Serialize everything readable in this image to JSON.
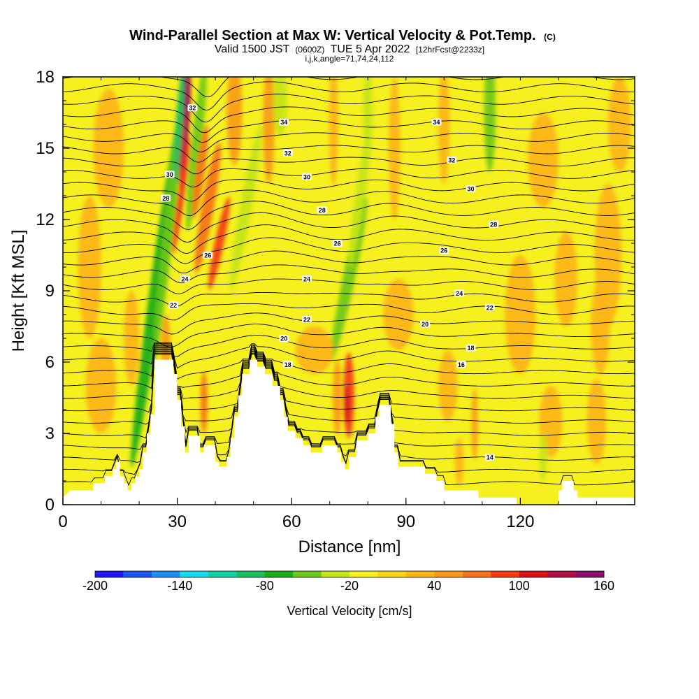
{
  "header": {
    "title": "Wind-Parallel Section at Max W: Vertical Velocity & Pot.Temp.",
    "title_mark": "(C)",
    "valid_prefix": "Valid 1500 JST",
    "valid_z": "(0600Z)",
    "valid_date": "TUE 5 Apr 2022",
    "fcst": "[12hrFcst@2233z]",
    "indices": "i,j,k,angle=71,74,24,112"
  },
  "chart_data": {
    "type": "heatmap",
    "xlabel": "Distance [nm]",
    "ylabel": "Height [Kft MSL]",
    "xlim": [
      0,
      150
    ],
    "ylim": [
      0,
      18
    ],
    "x_ticks": [
      "0",
      "30",
      "60",
      "90",
      "120"
    ],
    "y_ticks": [
      "0",
      "3",
      "6",
      "9",
      "12",
      "15",
      "18"
    ],
    "colorbar": {
      "label": "Vertical Velocity [cm/s]",
      "tick_labels": [
        "-200",
        "-140",
        "-80",
        "-20",
        "40",
        "100",
        "160"
      ],
      "levels": [
        -200,
        -180,
        -160,
        -140,
        -120,
        -100,
        -80,
        -60,
        -40,
        -20,
        0,
        20,
        40,
        60,
        80,
        100,
        120,
        140,
        160
      ],
      "colors": [
        "#1c18f5",
        "#1a55ee",
        "#1a8ff0",
        "#16d8ee",
        "#12d0a4",
        "#18c060",
        "#1aad1a",
        "#6ec81a",
        "#c4e41a",
        "#f6f01e",
        "#fcd216",
        "#fcb416",
        "#f89a16",
        "#f6721a",
        "#f23a14",
        "#d8101c",
        "#b0104a",
        "#86106c"
      ]
    },
    "terrain": [
      [
        0,
        0.3
      ],
      [
        2,
        0.6
      ],
      [
        8,
        0.6
      ],
      [
        8,
        0.9
      ],
      [
        11,
        0.9
      ],
      [
        11,
        1.2
      ],
      [
        13,
        1.2
      ],
      [
        13,
        1.5
      ],
      [
        14,
        1.5
      ],
      [
        14,
        1.8
      ],
      [
        15,
        1.8
      ],
      [
        15,
        1.2
      ],
      [
        16,
        1.2
      ],
      [
        16,
        0.9
      ],
      [
        17,
        0.9
      ],
      [
        17,
        0.6
      ],
      [
        18,
        0.6
      ],
      [
        18,
        0.9
      ],
      [
        19,
        0.9
      ],
      [
        19,
        1.2
      ],
      [
        20,
        1.2
      ],
      [
        20,
        1.5
      ],
      [
        21,
        1.5
      ],
      [
        21,
        2.2
      ],
      [
        22,
        2.2
      ],
      [
        22,
        3.0
      ],
      [
        23,
        3.0
      ],
      [
        23,
        3.8
      ],
      [
        24,
        3.8
      ],
      [
        24,
        6.1
      ],
      [
        29,
        6.1
      ],
      [
        29,
        5.5
      ],
      [
        30,
        5.5
      ],
      [
        30,
        4.4
      ],
      [
        31,
        4.4
      ],
      [
        31,
        3.3
      ],
      [
        32,
        3.3
      ],
      [
        32,
        2.2
      ],
      [
        33,
        2.2
      ],
      [
        33,
        2.9
      ],
      [
        36,
        2.9
      ],
      [
        36,
        2.2
      ],
      [
        37,
        2.2
      ],
      [
        37,
        2.5
      ],
      [
        40,
        2.5
      ],
      [
        40,
        1.8
      ],
      [
        41,
        1.8
      ],
      [
        41,
        1.6
      ],
      [
        43,
        1.6
      ],
      [
        43,
        2.0
      ],
      [
        44,
        2.0
      ],
      [
        44,
        2.8
      ],
      [
        45,
        2.8
      ],
      [
        45,
        3.7
      ],
      [
        46,
        3.7
      ],
      [
        46,
        4.6
      ],
      [
        47,
        4.6
      ],
      [
        47,
        5.5
      ],
      [
        49,
        5.5
      ],
      [
        49,
        6.1
      ],
      [
        51,
        6.1
      ],
      [
        51,
        5.8
      ],
      [
        53,
        5.8
      ],
      [
        53,
        5.5
      ],
      [
        55,
        5.5
      ],
      [
        55,
        5.0
      ],
      [
        57,
        5.0
      ],
      [
        57,
        4.4
      ],
      [
        58,
        4.4
      ],
      [
        58,
        3.7
      ],
      [
        59,
        3.7
      ],
      [
        59,
        3.1
      ],
      [
        61,
        3.1
      ],
      [
        61,
        2.8
      ],
      [
        63,
        2.8
      ],
      [
        63,
        2.5
      ],
      [
        65,
        2.5
      ],
      [
        65,
        2.2
      ],
      [
        68,
        2.2
      ],
      [
        68,
        2.5
      ],
      [
        72,
        2.5
      ],
      [
        72,
        2.2
      ],
      [
        73,
        2.2
      ],
      [
        73,
        1.8
      ],
      [
        74,
        1.8
      ],
      [
        74,
        1.5
      ],
      [
        75,
        1.5
      ],
      [
        75,
        2.0
      ],
      [
        77,
        2.0
      ],
      [
        77,
        2.7
      ],
      [
        80,
        2.7
      ],
      [
        80,
        3.0
      ],
      [
        82,
        3.0
      ],
      [
        82,
        3.7
      ],
      [
        83,
        3.7
      ],
      [
        83,
        4.2
      ],
      [
        86,
        4.2
      ],
      [
        86,
        3.4
      ],
      [
        87,
        3.4
      ],
      [
        87,
        2.2
      ],
      [
        88,
        2.2
      ],
      [
        88,
        1.6
      ],
      [
        95,
        1.6
      ],
      [
        95,
        1.3
      ],
      [
        98,
        1.3
      ],
      [
        98,
        1.0
      ],
      [
        100,
        1.0
      ],
      [
        100,
        0.6
      ],
      [
        109,
        0.6
      ],
      [
        109,
        0.3
      ],
      [
        119,
        0.3
      ],
      [
        119,
        0.0
      ],
      [
        130,
        0.0
      ],
      [
        130,
        0.6
      ],
      [
        131,
        0.6
      ],
      [
        131,
        1.0
      ],
      [
        134,
        1.0
      ],
      [
        134,
        0.6
      ],
      [
        135,
        0.6
      ],
      [
        135,
        0.3
      ],
      [
        150,
        0.3
      ]
    ],
    "potential_temp_contours": [
      {
        "level": "14",
        "label_at": [
          112,
          2.0
        ]
      },
      {
        "level": "16",
        "label_at": [
          104.5,
          5.9
        ]
      },
      {
        "level": "18",
        "label_at": [
          59,
          5.9
        ]
      },
      {
        "level": "18",
        "label_at": [
          107,
          6.6
        ]
      },
      {
        "level": "20",
        "label_at": [
          58,
          7.0
        ]
      },
      {
        "level": "20",
        "label_at": [
          95,
          7.6
        ]
      },
      {
        "level": "22",
        "label_at": [
          29,
          8.4
        ]
      },
      {
        "level": "22",
        "label_at": [
          64,
          7.8
        ]
      },
      {
        "level": "22",
        "label_at": [
          112,
          8.3
        ]
      },
      {
        "level": "24",
        "label_at": [
          32,
          9.5
        ]
      },
      {
        "level": "24",
        "label_at": [
          64,
          9.5
        ]
      },
      {
        "level": "24",
        "label_at": [
          104,
          8.9
        ]
      },
      {
        "level": "26",
        "label_at": [
          38,
          10.5
        ]
      },
      {
        "level": "26",
        "label_at": [
          72,
          11.0
        ]
      },
      {
        "level": "26",
        "label_at": [
          100,
          10.7
        ]
      },
      {
        "level": "28",
        "label_at": [
          27,
          12.9
        ]
      },
      {
        "level": "28",
        "label_at": [
          68,
          12.4
        ]
      },
      {
        "level": "28",
        "label_at": [
          113,
          11.8
        ]
      },
      {
        "level": "30",
        "label_at": [
          28,
          13.9
        ]
      },
      {
        "level": "30",
        "label_at": [
          64,
          13.8
        ]
      },
      {
        "level": "30",
        "label_at": [
          107,
          13.3
        ]
      },
      {
        "level": "32",
        "label_at": [
          34,
          16.7
        ]
      },
      {
        "level": "32",
        "label_at": [
          59,
          14.8
        ]
      },
      {
        "level": "32",
        "label_at": [
          102,
          14.5
        ]
      },
      {
        "level": "34",
        "label_at": [
          58,
          16.1
        ]
      },
      {
        "level": "34",
        "label_at": [
          98,
          16.1
        ]
      }
    ]
  }
}
